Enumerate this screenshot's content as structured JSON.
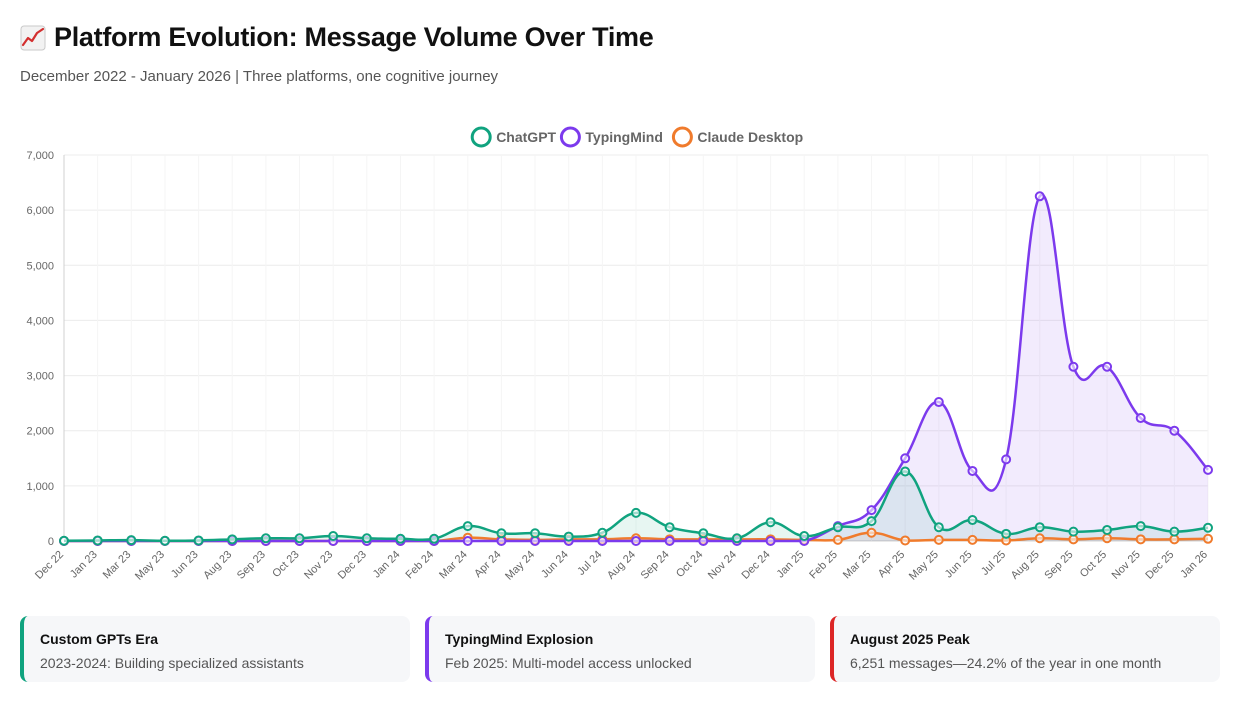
{
  "header": {
    "title": "Platform Evolution: Message Volume Over Time",
    "subtitle": "December 2022 - January 2026 | Three platforms, one cognitive journey",
    "icon": "chart-increasing-icon"
  },
  "chart_data": {
    "type": "line",
    "title": "",
    "xlabel": "",
    "ylabel": "",
    "ylim": [
      0,
      7000
    ],
    "yticks": [
      0,
      1000,
      2000,
      3000,
      4000,
      5000,
      6000,
      7000
    ],
    "ytick_labels": [
      "0",
      "1,000",
      "2,000",
      "3,000",
      "4,000",
      "5,000",
      "6,000",
      "7,000"
    ],
    "grid": true,
    "legend_position": "top-center",
    "categories": [
      "Dec 22",
      "Jan 23",
      "Mar 23",
      "May 23",
      "Jun 23",
      "Aug 23",
      "Sep 23",
      "Oct 23",
      "Nov 23",
      "Dec 23",
      "Jan 24",
      "Feb 24",
      "Mar 24",
      "Apr 24",
      "May 24",
      "Jun 24",
      "Jul 24",
      "Aug 24",
      "Sep 24",
      "Oct 24",
      "Nov 24",
      "Dec 24",
      "Jan 25",
      "Feb 25",
      "Mar 25",
      "Apr 25",
      "May 25",
      "Jun 25",
      "Jul 25",
      "Aug 25",
      "Sep 25",
      "Oct 25",
      "Nov 25",
      "Dec 25",
      "Jan 26"
    ],
    "series": [
      {
        "name": "ChatGPT",
        "color": "#10a37f",
        "fill": "rgba(16,163,127,0.10)",
        "values": [
          5,
          10,
          15,
          5,
          10,
          30,
          50,
          50,
          90,
          50,
          40,
          40,
          270,
          140,
          140,
          80,
          150,
          510,
          250,
          140,
          50,
          340,
          90,
          250,
          360,
          1260,
          250,
          380,
          130,
          250,
          170,
          200,
          270,
          170,
          240
        ]
      },
      {
        "name": "TypingMind",
        "color": "#7c3aed",
        "fill": "rgba(124,58,237,0.10)",
        "values": [
          0,
          0,
          0,
          0,
          0,
          0,
          0,
          0,
          0,
          0,
          0,
          0,
          0,
          0,
          0,
          0,
          0,
          0,
          0,
          0,
          0,
          0,
          0,
          270,
          560,
          1500,
          2520,
          1270,
          1480,
          6251,
          3160,
          3160,
          2230,
          2000,
          1290
        ]
      },
      {
        "name": "Claude Desktop",
        "color": "#f07b2c",
        "fill": "rgba(240,123,44,0.08)",
        "values": [
          0,
          0,
          0,
          0,
          0,
          0,
          0,
          0,
          0,
          0,
          0,
          0,
          60,
          30,
          20,
          30,
          30,
          50,
          30,
          30,
          30,
          30,
          20,
          20,
          150,
          10,
          20,
          20,
          10,
          50,
          30,
          50,
          30,
          30,
          40
        ]
      }
    ]
  },
  "cards": [
    {
      "title": "Custom GPTs Era",
      "body": "2023-2024: Building specialized assistants",
      "accent": "#10a37f"
    },
    {
      "title": "TypingMind Explosion",
      "body": "Feb 2025: Multi-model access unlocked",
      "accent": "#7c3aed"
    },
    {
      "title": "August 2025 Peak",
      "body": "6,251 messages—24.2% of the year in one month",
      "accent": "#dc2626"
    }
  ]
}
